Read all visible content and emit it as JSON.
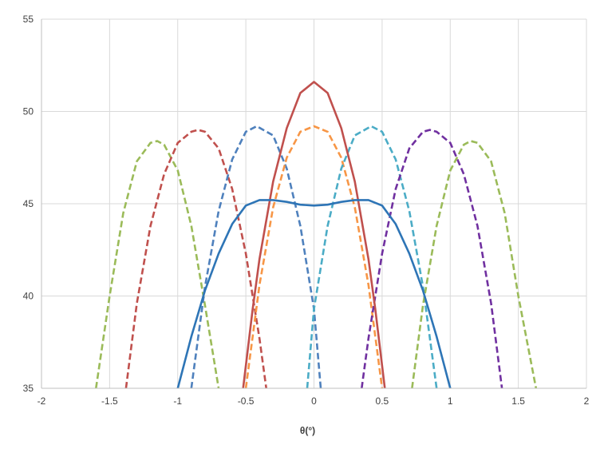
{
  "chart_data": {
    "type": "line",
    "title": "",
    "xlabel": "θ(°)",
    "ylabel": "",
    "xlim": [
      -2,
      2
    ],
    "ylim": [
      35,
      55
    ],
    "xticks": [
      -2,
      -1.5,
      -1,
      -0.5,
      0,
      0.5,
      1,
      1.5,
      2
    ],
    "yticks": [
      35,
      40,
      45,
      50,
      55
    ],
    "xtick_labels": [
      "-2",
      "-1.5",
      "-1",
      "-0.5",
      "0",
      "0.5",
      "1",
      "1.5",
      "2"
    ],
    "ytick_labels": [
      "35",
      "40",
      "45",
      "50",
      "55"
    ],
    "grid": true,
    "legend": "none",
    "series": [
      {
        "color": "#9bbb59",
        "style": "dashed",
        "x": [
          -1.6,
          -1.5,
          -1.4,
          -1.3,
          -1.2,
          -1.15,
          -1.1,
          -1.0,
          -0.9,
          -0.8,
          -0.7
        ],
        "y": [
          35,
          40,
          44.5,
          47.3,
          48.3,
          48.4,
          48.2,
          46.8,
          43.8,
          39.5,
          35
        ]
      },
      {
        "color": "#c0504d",
        "style": "dashed",
        "x": [
          -1.38,
          -1.3,
          -1.2,
          -1.1,
          -1.0,
          -0.9,
          -0.85,
          -0.8,
          -0.7,
          -0.6,
          -0.5,
          -0.4,
          -0.35
        ],
        "y": [
          35,
          39.6,
          43.8,
          46.6,
          48.3,
          48.9,
          49.0,
          48.9,
          48.0,
          45.8,
          42.3,
          37.7,
          35
        ]
      },
      {
        "color": "#4f81bd",
        "style": "dashed",
        "x": [
          -0.9,
          -0.8,
          -0.7,
          -0.6,
          -0.5,
          -0.42,
          -0.3,
          -0.2,
          -0.1,
          0.0,
          0.05
        ],
        "y": [
          35,
          40.5,
          44.6,
          47.4,
          48.9,
          49.2,
          48.7,
          46.9,
          43.8,
          39.3,
          35
        ]
      },
      {
        "color": "#f79646",
        "style": "dashed",
        "x": [
          -0.5,
          -0.4,
          -0.3,
          -0.2,
          -0.1,
          0.0,
          0.1,
          0.2,
          0.3,
          0.4,
          0.5
        ],
        "y": [
          35,
          40.6,
          44.8,
          47.5,
          48.9,
          49.2,
          48.9,
          47.5,
          44.8,
          40.6,
          35
        ]
      },
      {
        "color": "#4bacc6",
        "style": "dashed",
        "x": [
          -0.05,
          0.0,
          0.1,
          0.2,
          0.3,
          0.42,
          0.5,
          0.6,
          0.7,
          0.8,
          0.9
        ],
        "y": [
          35,
          39.3,
          43.8,
          46.9,
          48.7,
          49.2,
          48.9,
          47.4,
          44.6,
          40.5,
          35
        ]
      },
      {
        "color": "#7030a0",
        "style": "dashed",
        "x": [
          0.35,
          0.4,
          0.5,
          0.6,
          0.7,
          0.8,
          0.85,
          0.9,
          1.0,
          1.1,
          1.2,
          1.3,
          1.38
        ],
        "y": [
          35,
          37.7,
          42.3,
          45.8,
          48.0,
          48.9,
          49.0,
          48.9,
          48.3,
          46.6,
          43.8,
          39.6,
          35
        ]
      },
      {
        "color": "#9bbb59",
        "style": "dashed",
        "x": [
          0.72,
          0.8,
          0.9,
          1.0,
          1.1,
          1.15,
          1.2,
          1.3,
          1.4,
          1.5,
          1.63
        ],
        "y": [
          35,
          39.5,
          43.8,
          46.8,
          48.2,
          48.4,
          48.3,
          47.3,
          44.5,
          40.0,
          35
        ]
      },
      {
        "color": "#c0504d",
        "style": "solid",
        "x": [
          -0.52,
          -0.45,
          -0.4,
          -0.3,
          -0.2,
          -0.1,
          0.0,
          0.1,
          0.2,
          0.3,
          0.4,
          0.45,
          0.52
        ],
        "y": [
          35,
          39.3,
          42.0,
          46.2,
          49.1,
          51.0,
          51.6,
          51.0,
          49.1,
          46.2,
          42.0,
          39.3,
          35
        ]
      },
      {
        "color": "#2e75b6",
        "style": "solid",
        "x": [
          -1.0,
          -0.9,
          -0.8,
          -0.7,
          -0.6,
          -0.5,
          -0.4,
          -0.3,
          -0.2,
          -0.1,
          0.0,
          0.1,
          0.2,
          0.3,
          0.4,
          0.5,
          0.6,
          0.7,
          0.8,
          0.9,
          1.0
        ],
        "y": [
          35,
          37.8,
          40.3,
          42.3,
          43.9,
          44.9,
          45.2,
          45.2,
          45.1,
          44.95,
          44.9,
          44.95,
          45.1,
          45.2,
          45.2,
          44.9,
          43.9,
          42.3,
          40.3,
          37.8,
          35
        ]
      }
    ]
  }
}
